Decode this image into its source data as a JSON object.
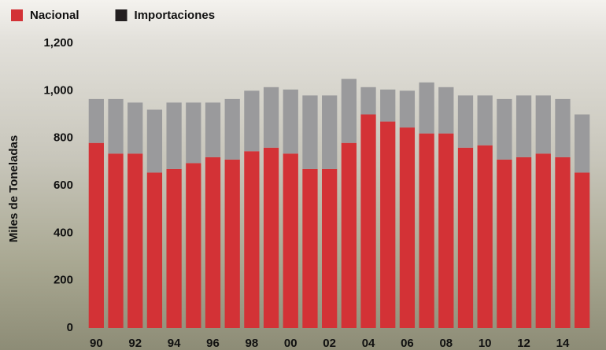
{
  "chart_data": {
    "type": "stacked_bar",
    "categories": [
      "90",
      null,
      "92",
      null,
      "94",
      null,
      "96",
      null,
      "98",
      null,
      "00",
      null,
      "02",
      null,
      "04",
      null,
      "06",
      null,
      "08",
      null,
      "10",
      null,
      "12",
      null,
      "14",
      null
    ],
    "series": [
      {
        "name": "Nacional",
        "color": "#d33236",
        "legend_color": "#d33236",
        "values": [
          780,
          735,
          735,
          655,
          670,
          695,
          720,
          710,
          745,
          760,
          735,
          670,
          670,
          780,
          900,
          870,
          845,
          820,
          820,
          760,
          770,
          710,
          720,
          735,
          720,
          655
        ]
      },
      {
        "name": "Importaciones",
        "color": "#9a9a9c",
        "legend_color": "#231f20",
        "values": [
          185,
          230,
          215,
          265,
          280,
          255,
          230,
          255,
          255,
          255,
          270,
          310,
          310,
          270,
          115,
          135,
          155,
          215,
          195,
          220,
          210,
          255,
          260,
          245,
          245,
          245
        ]
      }
    ],
    "ylabel": "Miles de Toneladas",
    "ylim": [
      0,
      1200
    ],
    "yticks": [
      0,
      200,
      400,
      600,
      800,
      {
        "value": 1000,
        "label": "1,000"
      },
      {
        "value": 1200,
        "label": "1,200"
      }
    ],
    "grid": false
  }
}
